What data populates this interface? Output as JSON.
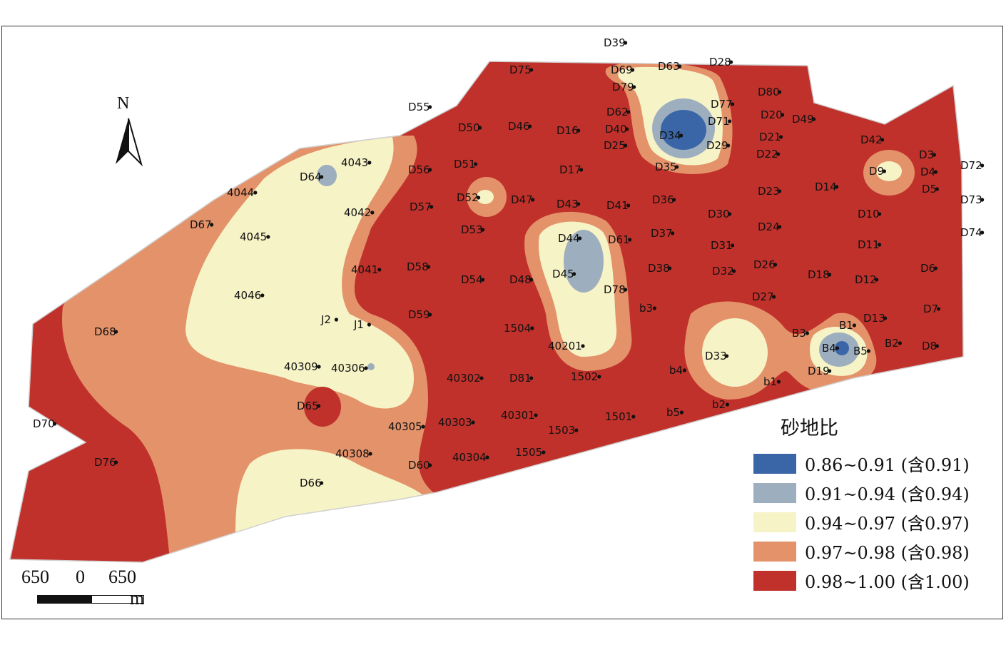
{
  "map": {
    "north_label": "N",
    "scale": {
      "left": "650",
      "center": "0",
      "right": "650",
      "unit": "m"
    },
    "legend": {
      "title": "砂地比",
      "items": [
        {
          "label": "0.86~0.91 (含0.91)",
          "color": "#3a66a8"
        },
        {
          "label": "0.91~0.94 (含0.94)",
          "color": "#9daebe"
        },
        {
          "label": "0.94~0.97 (含0.97)",
          "color": "#f6f3c6"
        },
        {
          "label": "0.97~0.98 (含0.98)",
          "color": "#e4926a"
        },
        {
          "label": "0.98~1.00 (含1.00)",
          "color": "#c0312b"
        }
      ]
    },
    "wells": [
      "D39",
      "D75",
      "D69",
      "D63",
      "D28",
      "D79",
      "D80",
      "D55",
      "D62",
      "D77",
      "D20",
      "D49",
      "D71",
      "D50",
      "D46",
      "D16",
      "D40",
      "D34",
      "D21",
      "D42",
      "D25",
      "D29",
      "D22",
      "D3",
      "D64",
      "4043",
      "D56",
      "D51",
      "D17",
      "D35",
      "D9",
      "D4",
      "D72",
      "4044",
      "D5",
      "D52",
      "D47",
      "D43",
      "D41",
      "D36",
      "D23",
      "D14",
      "D73",
      "4042",
      "D57",
      "D30",
      "D10",
      "D67",
      "D53",
      "D44",
      "D61",
      "D37",
      "D24",
      "D74",
      "4045",
      "D11",
      "D31",
      "D45",
      "D58",
      "4041",
      "D26",
      "D6",
      "D38",
      "D32",
      "D54",
      "D48",
      "D18",
      "D12",
      "D78",
      "4046",
      "D27",
      "b3",
      "J2",
      "J1",
      "D7",
      "D13",
      "D59",
      "B1",
      "D68",
      "1504",
      "B3",
      "B2",
      "D8",
      "B4",
      "B5",
      "40201",
      "D33",
      "40309",
      "40306",
      "b4",
      "D19",
      "40302",
      "D81",
      "1502",
      "b1",
      "b2",
      "D65",
      "1501",
      "b5",
      "40301",
      "D70",
      "40305",
      "40303",
      "1503",
      "40308",
      "1505",
      "D60",
      "40304",
      "D76",
      "D66"
    ]
  }
}
